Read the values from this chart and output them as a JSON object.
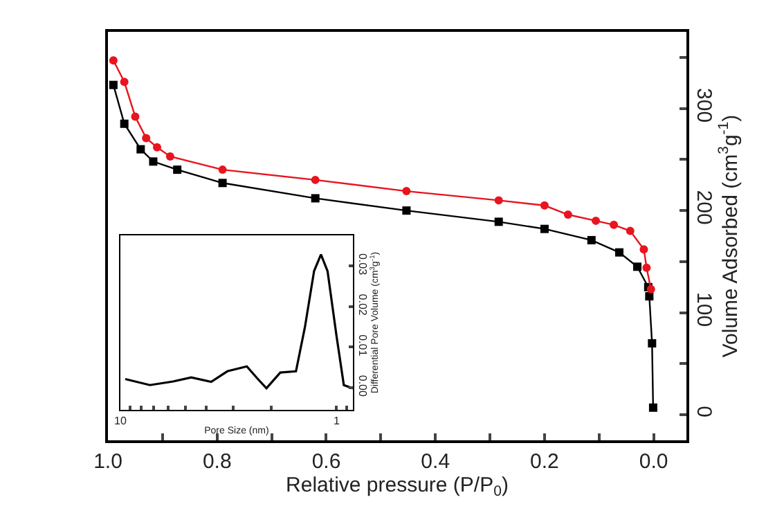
{
  "chart_data": [
    {
      "type": "line",
      "xlabel": "Relative pressure (P/P$_{0}$)",
      "ylabel": "Volume Adsorbed (cm$^{3}$g$^{-1}$)",
      "xlim": [
        1.0,
        -0.06
      ],
      "ylim": [
        -25,
        375
      ],
      "xticks": [
        {
          "value": 1.0,
          "label": "1.0"
        },
        {
          "value": 0.9,
          "label": null
        },
        {
          "value": 0.8,
          "label": "0.8"
        },
        {
          "value": 0.7,
          "label": null
        },
        {
          "value": 0.6,
          "label": "0.6"
        },
        {
          "value": 0.5,
          "label": null
        },
        {
          "value": 0.4,
          "label": "0.4"
        },
        {
          "value": 0.3,
          "label": null
        },
        {
          "value": 0.2,
          "label": "0.2"
        },
        {
          "value": 0.1,
          "label": null
        },
        {
          "value": 0.0,
          "label": "0.0"
        }
      ],
      "yticks": [
        0,
        {
          "value": 50,
          "label": null
        },
        100,
        {
          "value": 150,
          "label": null
        },
        200,
        {
          "value": 250,
          "label": null
        },
        300,
        {
          "value": 350,
          "label": null
        }
      ],
      "line_style": "solid",
      "series": [
        {
          "color": "#000000",
          "marker": "square",
          "x": [
            0.99,
            0.97,
            0.94,
            0.917,
            0.873,
            0.79,
            0.62,
            0.453,
            0.284,
            0.2,
            0.114,
            0.063,
            0.03,
            0.01,
            0.008,
            0.003,
            0.001
          ],
          "values": [
            323,
            285,
            260,
            248,
            240,
            227,
            212,
            200,
            189,
            182,
            171,
            159,
            145,
            125,
            116,
            70,
            7
          ]
        },
        {
          "color": "#e8141e",
          "marker": "circle",
          "x": [
            0.99,
            0.97,
            0.95,
            0.93,
            0.91,
            0.886,
            0.79,
            0.62,
            0.453,
            0.284,
            0.2,
            0.157,
            0.106,
            0.073,
            0.043,
            0.018,
            0.013,
            0.005
          ],
          "values": [
            347,
            326,
            292,
            271,
            262,
            253,
            240,
            230,
            219,
            210,
            205,
            196,
            190,
            186,
            180,
            162,
            144,
            123
          ]
        }
      ]
    },
    {
      "type": "line",
      "xlabel": "Pore Size (nm)",
      "ylabel": "Differential Pore Volume (cm$^{3}$g$^{-1}$)",
      "log": "x",
      "xlim": [
        10,
        0.84
      ],
      "ylim": [
        -0.0055,
        0.0375
      ],
      "xticks": [
        10,
        {
          "value": 9,
          "label": null
        },
        {
          "value": 8,
          "label": null
        },
        {
          "value": 7,
          "label": null
        },
        {
          "value": 6,
          "label": null
        },
        {
          "value": 5,
          "label": null
        },
        {
          "value": 4,
          "label": null
        },
        {
          "value": 3,
          "label": null
        },
        {
          "value": 2,
          "label": null
        },
        1,
        {
          "value": 0.9,
          "label": null
        }
      ],
      "yticks": [
        {
          "value": 0,
          "label": "0.00"
        },
        {
          "value": 0.01,
          "label": "0.01"
        },
        {
          "value": 0.02,
          "label": "0.02"
        },
        {
          "value": 0.03,
          "label": "0.03"
        }
      ],
      "marker": "none",
      "line_style": "solid",
      "series": [
        {
          "color": "#000000",
          "x": [
            9.5,
            7.3,
            5.7,
            4.7,
            3.8,
            3.2,
            2.6,
            2.33,
            2.11,
            1.82,
            1.54,
            1.4,
            1.27,
            1.18,
            1.1,
            1.0,
            0.925,
            0.84
          ],
          "values": [
            0.0021,
            0.0006,
            0.0015,
            0.0025,
            0.0014,
            0.004,
            0.0052,
            0.0023,
            -0.0002,
            0.0037,
            0.004,
            0.0149,
            0.0287,
            0.0328,
            0.0287,
            0.0127,
            0.0006,
            -0.0002
          ]
        }
      ]
    }
  ]
}
